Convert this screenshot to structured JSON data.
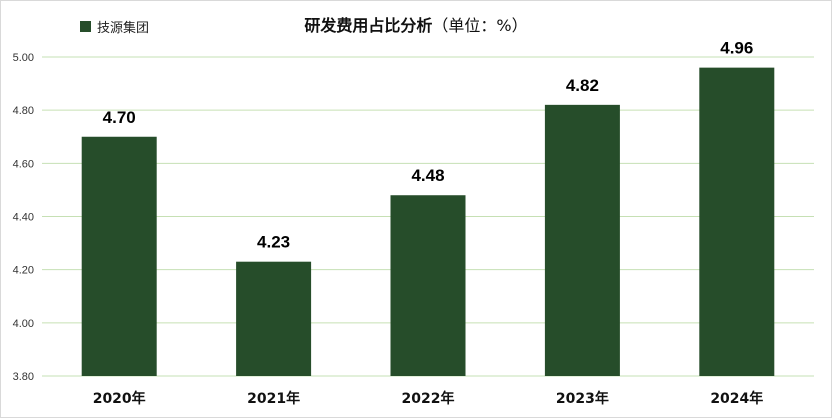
{
  "chart_data": {
    "type": "bar",
    "title": "研发费用占比分析",
    "subtitle": "（单位：%）",
    "categories": [
      "2020年",
      "2021年",
      "2022年",
      "2023年",
      "2024年"
    ],
    "series": [
      {
        "name": "技源集团",
        "values": [
          4.7,
          4.23,
          4.48,
          4.82,
          4.96
        ],
        "color": "#264d2a"
      }
    ],
    "data_labels": [
      "4.70",
      "4.23",
      "4.48",
      "4.82",
      "4.96"
    ],
    "ylim": [
      3.8,
      5.0
    ],
    "yticks": [
      "3.80",
      "4.00",
      "4.20",
      "4.40",
      "4.60",
      "4.80",
      "5.00"
    ],
    "grid": true,
    "gridline_color": "#c6e0b4",
    "legend_position": "top-left"
  }
}
